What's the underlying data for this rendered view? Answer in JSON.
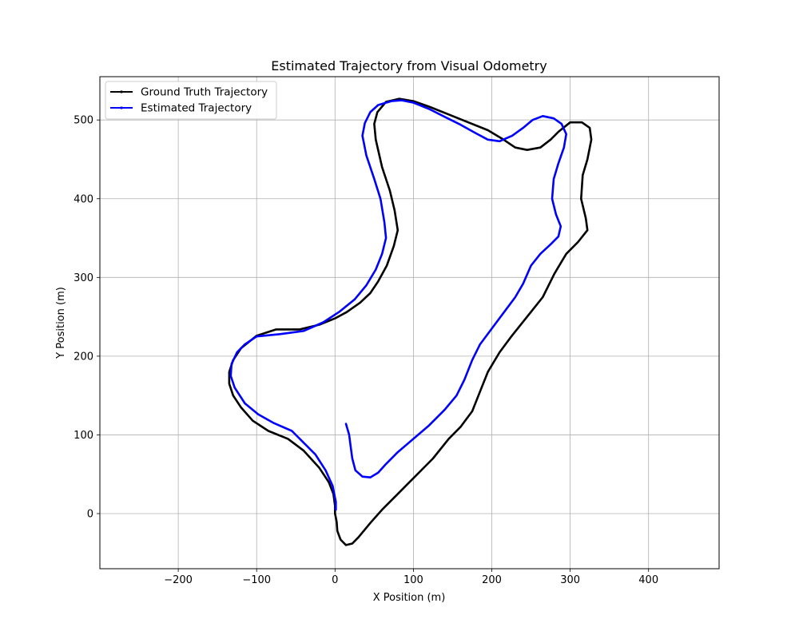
{
  "chart_data": {
    "type": "line",
    "title": "Estimated Trajectory from Visual Odometry",
    "xlabel": "X Position (m)",
    "ylabel": "Y Position (m)",
    "xlim": [
      -300,
      490
    ],
    "ylim": [
      -70,
      555
    ],
    "xticks": [
      -200,
      -100,
      0,
      100,
      200,
      300,
      400
    ],
    "yticks": [
      0,
      100,
      200,
      300,
      400,
      500
    ],
    "xtick_labels": [
      "−200",
      "−100",
      "0",
      "100",
      "200",
      "300",
      "400"
    ],
    "ytick_labels": [
      "0",
      "100",
      "200",
      "300",
      "400",
      "500"
    ],
    "grid": true,
    "legend_position": "upper-left",
    "series": [
      {
        "name": "Ground Truth Trajectory",
        "color": "#000000",
        "points": [
          [
            0,
            0
          ],
          [
            2,
            -10
          ],
          [
            3,
            -22
          ],
          [
            7,
            -33
          ],
          [
            14,
            -40
          ],
          [
            22,
            -38
          ],
          [
            30,
            -30
          ],
          [
            45,
            -12
          ],
          [
            60,
            5
          ],
          [
            80,
            25
          ],
          [
            100,
            45
          ],
          [
            125,
            70
          ],
          [
            145,
            95
          ],
          [
            160,
            110
          ],
          [
            175,
            130
          ],
          [
            185,
            155
          ],
          [
            195,
            180
          ],
          [
            210,
            205
          ],
          [
            225,
            225
          ],
          [
            245,
            250
          ],
          [
            265,
            275
          ],
          [
            280,
            305
          ],
          [
            295,
            330
          ],
          [
            310,
            345
          ],
          [
            322,
            360
          ],
          [
            320,
            375
          ],
          [
            314,
            400
          ],
          [
            316,
            430
          ],
          [
            322,
            450
          ],
          [
            327,
            475
          ],
          [
            325,
            490
          ],
          [
            315,
            497
          ],
          [
            300,
            497
          ],
          [
            285,
            485
          ],
          [
            275,
            475
          ],
          [
            262,
            465
          ],
          [
            245,
            462
          ],
          [
            230,
            465
          ],
          [
            215,
            475
          ],
          [
            195,
            487
          ],
          [
            170,
            497
          ],
          [
            145,
            507
          ],
          [
            120,
            517
          ],
          [
            100,
            524
          ],
          [
            82,
            527
          ],
          [
            65,
            523
          ],
          [
            54,
            510
          ],
          [
            50,
            495
          ],
          [
            52,
            475
          ],
          [
            60,
            440
          ],
          [
            70,
            410
          ],
          [
            76,
            385
          ],
          [
            80,
            360
          ],
          [
            75,
            340
          ],
          [
            66,
            315
          ],
          [
            55,
            295
          ],
          [
            45,
            280
          ],
          [
            32,
            268
          ],
          [
            15,
            256
          ],
          [
            0,
            248
          ],
          [
            -20,
            240
          ],
          [
            -45,
            234
          ],
          [
            -75,
            234
          ],
          [
            -100,
            226
          ],
          [
            -120,
            210
          ],
          [
            -130,
            195
          ],
          [
            -135,
            180
          ],
          [
            -135,
            165
          ],
          [
            -130,
            150
          ],
          [
            -120,
            135
          ],
          [
            -105,
            118
          ],
          [
            -85,
            105
          ],
          [
            -60,
            95
          ],
          [
            -40,
            80
          ],
          [
            -20,
            58
          ],
          [
            -8,
            40
          ],
          [
            -2,
            25
          ],
          [
            0,
            10
          ],
          [
            0,
            0
          ]
        ]
      },
      {
        "name": "Estimated Trajectory",
        "color": "#0000ff",
        "points": [
          [
            14,
            114
          ],
          [
            18,
            100
          ],
          [
            20,
            85
          ],
          [
            22,
            70
          ],
          [
            26,
            55
          ],
          [
            35,
            47
          ],
          [
            45,
            46
          ],
          [
            55,
            52
          ],
          [
            65,
            63
          ],
          [
            80,
            78
          ],
          [
            100,
            95
          ],
          [
            120,
            112
          ],
          [
            140,
            132
          ],
          [
            155,
            150
          ],
          [
            165,
            170
          ],
          [
            175,
            195
          ],
          [
            185,
            215
          ],
          [
            200,
            235
          ],
          [
            215,
            255
          ],
          [
            230,
            275
          ],
          [
            240,
            292
          ],
          [
            250,
            315
          ],
          [
            262,
            330
          ],
          [
            275,
            342
          ],
          [
            285,
            352
          ],
          [
            288,
            365
          ],
          [
            282,
            380
          ],
          [
            277,
            400
          ],
          [
            279,
            425
          ],
          [
            285,
            445
          ],
          [
            292,
            465
          ],
          [
            295,
            482
          ],
          [
            289,
            495
          ],
          [
            279,
            502
          ],
          [
            265,
            505
          ],
          [
            252,
            500
          ],
          [
            240,
            490
          ],
          [
            226,
            480
          ],
          [
            210,
            473
          ],
          [
            195,
            475
          ],
          [
            180,
            483
          ],
          [
            160,
            494
          ],
          [
            140,
            504
          ],
          [
            120,
            514
          ],
          [
            100,
            522
          ],
          [
            85,
            525
          ],
          [
            72,
            524
          ],
          [
            55,
            519
          ],
          [
            45,
            510
          ],
          [
            38,
            496
          ],
          [
            35,
            480
          ],
          [
            40,
            455
          ],
          [
            50,
            425
          ],
          [
            58,
            400
          ],
          [
            63,
            370
          ],
          [
            65,
            350
          ],
          [
            60,
            330
          ],
          [
            52,
            310
          ],
          [
            40,
            290
          ],
          [
            25,
            272
          ],
          [
            5,
            256
          ],
          [
            -15,
            243
          ],
          [
            -40,
            232
          ],
          [
            -70,
            228
          ],
          [
            -100,
            225
          ],
          [
            -115,
            215
          ],
          [
            -125,
            205
          ],
          [
            -132,
            190
          ],
          [
            -133,
            175
          ],
          [
            -128,
            160
          ],
          [
            -115,
            140
          ],
          [
            -98,
            126
          ],
          [
            -78,
            115
          ],
          [
            -55,
            105
          ],
          [
            -40,
            90
          ],
          [
            -25,
            75
          ],
          [
            -12,
            55
          ],
          [
            -3,
            35
          ],
          [
            1,
            15
          ],
          [
            1,
            5
          ]
        ]
      }
    ]
  }
}
